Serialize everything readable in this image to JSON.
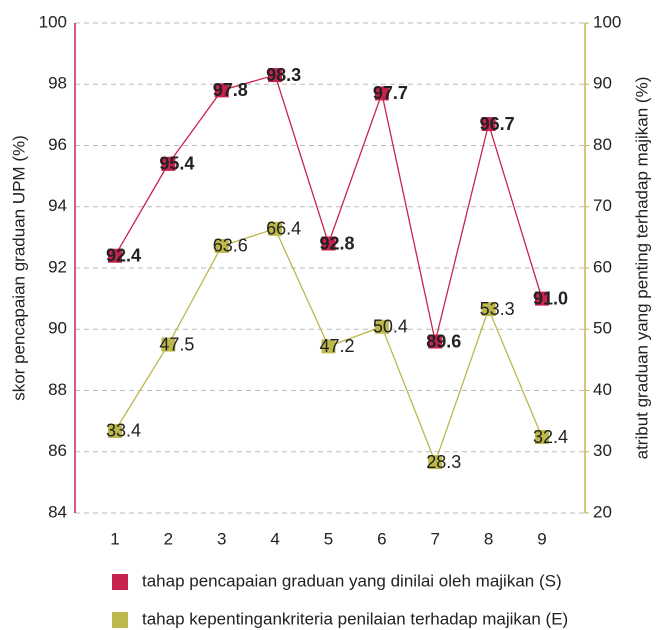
{
  "chart_data": {
    "type": "line",
    "categories": [
      "1",
      "2",
      "3",
      "4",
      "5",
      "6",
      "7",
      "8",
      "9"
    ],
    "ylabel": "skor pencapaian graduan UPM (%)",
    "y2label": "atribut graduan yang penting terhadap majikan (%)",
    "ylim": [
      84,
      100
    ],
    "yticks": [
      84,
      86,
      88,
      90,
      92,
      94,
      96,
      98,
      100
    ],
    "y2lim": [
      20,
      100
    ],
    "y2ticks": [
      20,
      30,
      40,
      50,
      60,
      70,
      80,
      90,
      100
    ],
    "grid": true,
    "legend": "bottom",
    "series": [
      {
        "name": "tahap pencapaian graduan yang dinilai oleh majikan (S)",
        "color": "#c8234e",
        "values": [
          92.4,
          95.4,
          97.8,
          98.3,
          92.8,
          97.7,
          89.6,
          96.7,
          91.0
        ],
        "value_labels": [
          "92.4",
          "95.4",
          "97.8",
          "98.3",
          "92.8",
          "97.7",
          "89.6",
          "96.7",
          "91.0"
        ]
      },
      {
        "name": "tahap kepentingankriteria penilaian terhadap majikan (E)",
        "color": "#bdb84c",
        "axis": "y2",
        "values": [
          33.4,
          47.5,
          63.6,
          66.4,
          47.2,
          50.4,
          28.3,
          53.3,
          32.4
        ]
      }
    ]
  }
}
